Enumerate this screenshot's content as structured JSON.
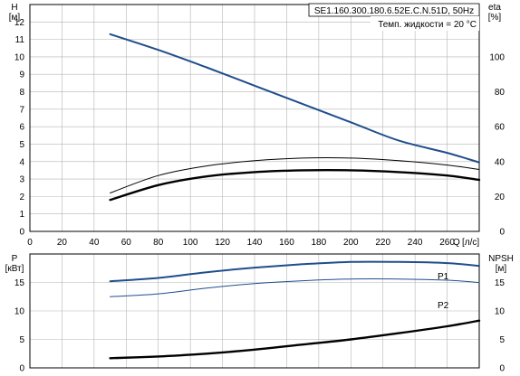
{
  "header": {
    "model": "SE1.160.300.180.6.52E.C.N.51D, 50Hz",
    "liquid_temp": "Темп. жидкости = 20 °C"
  },
  "chart_data": [
    {
      "type": "line",
      "name": "head-efficiency",
      "x_label": "Q",
      "x_unit": "[л/с]",
      "xlim": [
        0,
        280
      ],
      "x_ticks": [
        0,
        20,
        40,
        60,
        80,
        100,
        120,
        140,
        160,
        180,
        200,
        220,
        240,
        260
      ],
      "left_axis": {
        "label": "H",
        "unit": "[м]",
        "ylim": [
          0,
          13
        ],
        "ticks": [
          0,
          1,
          2,
          3,
          4,
          5,
          6,
          7,
          8,
          9,
          10,
          11,
          12
        ]
      },
      "right_axis": {
        "label": "eta",
        "unit": "[%]",
        "ylim": [
          0,
          130
        ],
        "ticks": [
          0,
          20,
          40,
          60,
          80,
          100
        ]
      },
      "grid": true,
      "series": [
        {
          "key": "head",
          "axis": "left",
          "color": "#1f4e8c",
          "width": 2,
          "x": [
            50,
            80,
            110,
            140,
            170,
            200,
            230,
            260,
            280
          ],
          "y": [
            11.3,
            10.4,
            9.4,
            8.35,
            7.3,
            6.25,
            5.2,
            4.5,
            3.95
          ]
        },
        {
          "key": "eta",
          "axis": "right",
          "color": "#000000",
          "width": 1,
          "x": [
            50,
            80,
            110,
            140,
            170,
            200,
            230,
            260,
            280
          ],
          "y": [
            22,
            32,
            37.5,
            40.5,
            42,
            42,
            40.5,
            38,
            35.5
          ]
        },
        {
          "key": "eta-2",
          "axis": "right",
          "color": "#000000",
          "width": 2.4,
          "x": [
            50,
            80,
            110,
            140,
            170,
            200,
            230,
            260,
            280
          ],
          "y": [
            18,
            26.5,
            31.5,
            34,
            35,
            35,
            34,
            32,
            29.5
          ]
        }
      ]
    },
    {
      "type": "line",
      "name": "power-npsh",
      "xlim": [
        0,
        280
      ],
      "x_ticks": [
        0,
        20,
        40,
        60,
        80,
        100,
        120,
        140,
        160,
        180,
        200,
        220,
        240,
        260
      ],
      "left_axis": {
        "label": "P",
        "unit": "[кВт]",
        "ylim": [
          0,
          20
        ],
        "ticks": [
          0,
          5,
          10,
          15
        ]
      },
      "right_axis": {
        "label": "NPSH",
        "unit": "[м]",
        "ylim": [
          0,
          20
        ],
        "ticks": [
          0,
          5,
          10,
          15
        ]
      },
      "grid": true,
      "series": [
        {
          "key": "P1",
          "name": "P1",
          "axis": "left",
          "color": "#1f4e8c",
          "width": 2,
          "x": [
            50,
            80,
            110,
            140,
            170,
            200,
            230,
            260,
            280
          ],
          "y": [
            15.2,
            15.8,
            16.8,
            17.6,
            18.2,
            18.6,
            18.6,
            18.4,
            17.9
          ]
        },
        {
          "key": "P2",
          "name": "P2",
          "axis": "left",
          "color": "#1f4e8c",
          "width": 1,
          "x": [
            50,
            80,
            110,
            140,
            170,
            200,
            230,
            260,
            280
          ],
          "y": [
            12.5,
            13.0,
            14.0,
            14.8,
            15.3,
            15.6,
            15.6,
            15.4,
            15.0
          ]
        },
        {
          "key": "npsh",
          "axis": "right",
          "color": "#000000",
          "width": 2.4,
          "x": [
            50,
            80,
            110,
            140,
            170,
            200,
            230,
            260,
            280
          ],
          "y": [
            1.7,
            2.0,
            2.5,
            3.2,
            4.1,
            5.0,
            6.1,
            7.3,
            8.3
          ]
        }
      ]
    }
  ]
}
